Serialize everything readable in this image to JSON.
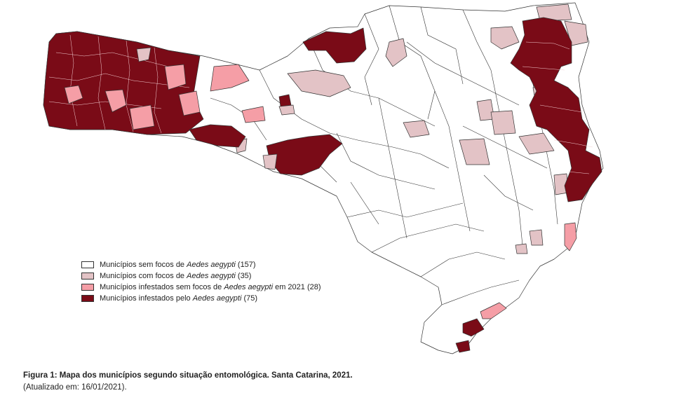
{
  "legend": {
    "items": [
      {
        "prefix": "Municípios sem focos de ",
        "species": "Aedes aegypti",
        "suffix": " (157)",
        "color": "#ffffff"
      },
      {
        "prefix": "Municípios com focos de ",
        "species": "Aedes aegypti",
        "suffix": " (35)",
        "color": "#e3c3c6"
      },
      {
        "prefix": "Municípios infestados sem focos de ",
        "species": "Aedes aegypti",
        "suffix": " em 2021 (28)",
        "color": "#f59ea6"
      },
      {
        "prefix": "Municípios infestados pelo ",
        "species": "Aedes aegypti",
        "suffix": " (75)",
        "color": "#7a0b17"
      }
    ]
  },
  "caption": {
    "title": "Figura 1: Mapa dos municípios segundo situação entomológica. Santa Catarina, 2021.",
    "updated": "(Atualizado em: 16/01/2021)."
  }
}
